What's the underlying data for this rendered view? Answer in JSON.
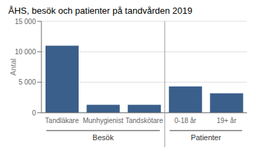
{
  "chart_data": {
    "type": "bar",
    "title": "ÅHS, besök och patienter på tandvården 2019",
    "ylabel": "Antal",
    "categories": [
      "Tandläkare",
      "Munhygienist",
      "Tandskötare",
      "0-18 år",
      "19+ år"
    ],
    "values": [
      11000,
      1300,
      1300,
      4300,
      3200
    ],
    "color": "#3a5f8a",
    "ylim": [
      0,
      15000
    ],
    "yticks": [
      0,
      {
        "value": 5000,
        "label": "5 000"
      },
      {
        "value": 10000,
        "label": "10 000"
      },
      {
        "value": 15000,
        "label": "15 000"
      }
    ],
    "grid": true,
    "groups": [
      {
        "label": "Besök",
        "categories": [
          "Tandläkare",
          "Munhygienist",
          "Tandskötare"
        ]
      },
      {
        "label": "Patienter",
        "categories": [
          "0-18 år",
          "19+ år"
        ]
      }
    ]
  }
}
